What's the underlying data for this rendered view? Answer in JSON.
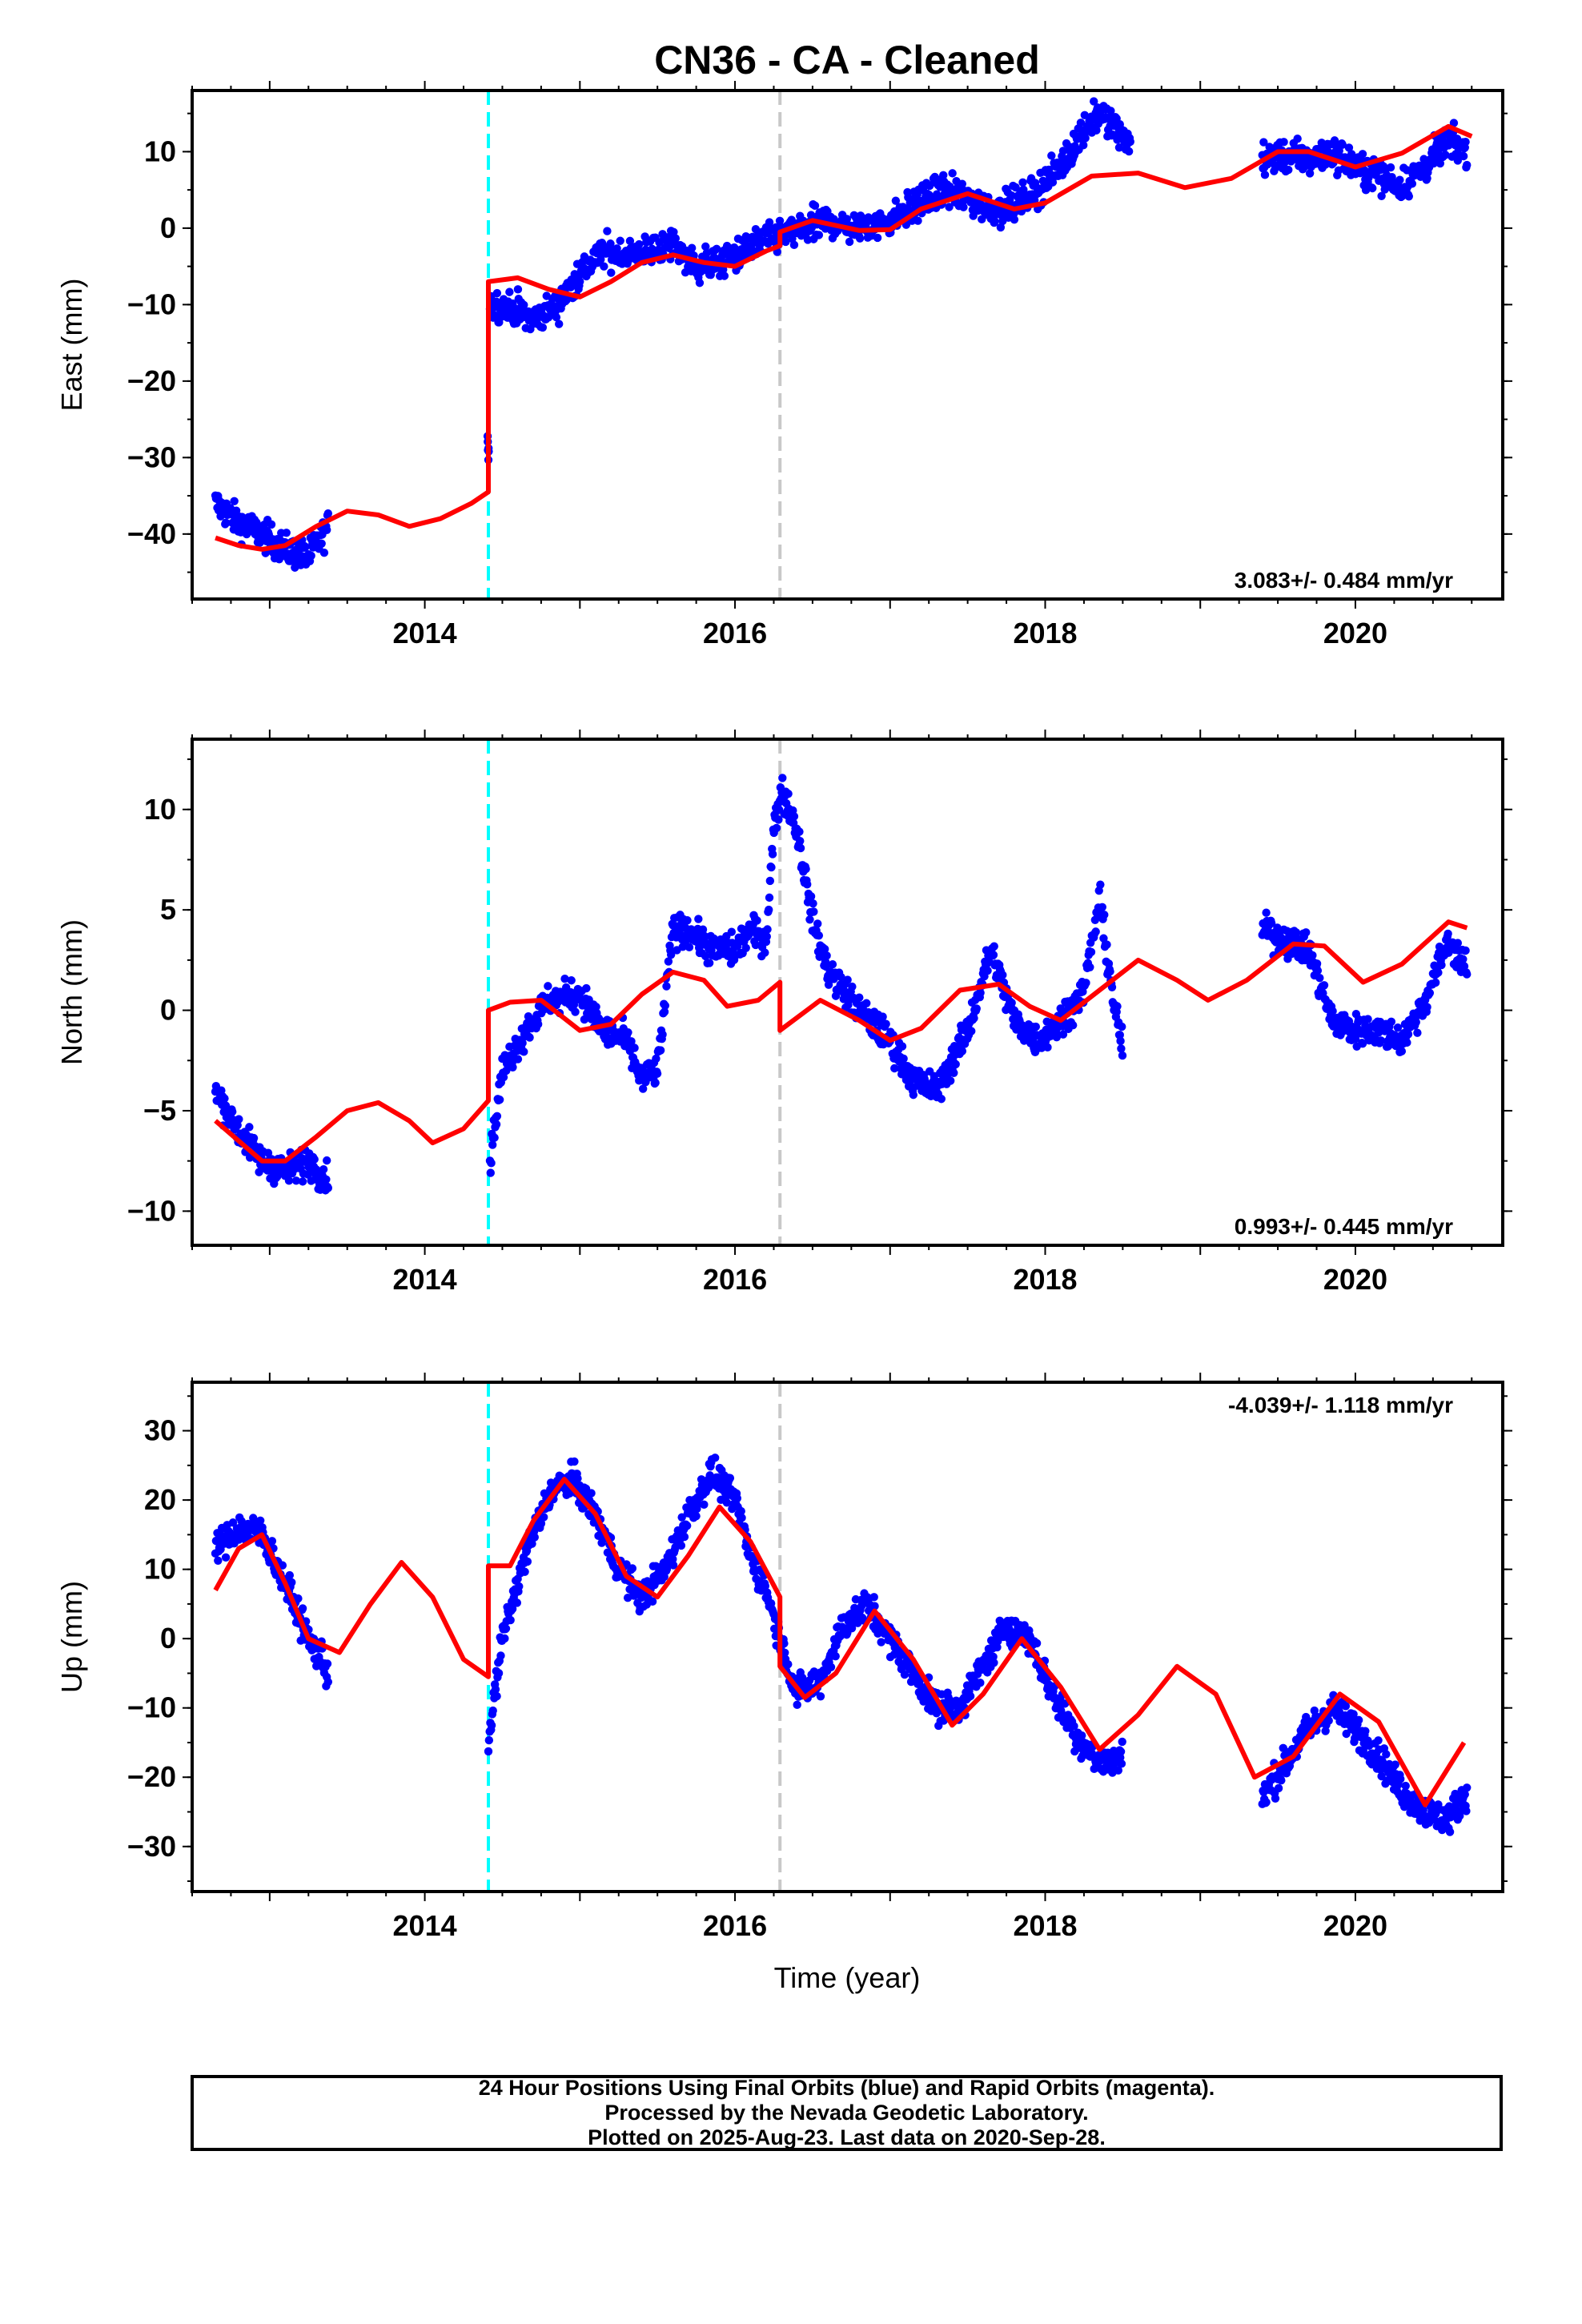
{
  "title": "CN36  - CA - Cleaned",
  "xlabel": "Time (year)",
  "colors": {
    "final_orbits": "#0000ff",
    "model": "#ff0000",
    "offset_equipment": "#00ffff",
    "offset_other": "#c8c8c8",
    "frame": "#000000"
  },
  "footer": {
    "line1": "24 Hour Positions Using Final Orbits (blue) and Rapid Orbits (magenta).",
    "line2": "Processed by the Nevada Geodetic Laboratory.",
    "line3": "Plotted on 2025-Aug-23. Last data on 2020-Sep-28."
  },
  "chart_data": [
    {
      "type": "scatter",
      "component": "East",
      "ylabel": "East (mm)",
      "xlim": [
        2012.5,
        2020.95
      ],
      "ylim": [
        -48.5,
        18
      ],
      "xticks": [
        2014,
        2016,
        2018,
        2020
      ],
      "yticks": [
        -40,
        -30,
        -20,
        -10,
        0,
        10
      ],
      "velocity_label": "3.083+/- 0.484 mm/yr",
      "velocity_label_position": "bottom-right",
      "offset_lines": [
        {
          "x": 2014.41,
          "color": "cyan"
        },
        {
          "x": 2016.29,
          "color": "gray"
        }
      ],
      "data_segments": [
        {
          "x": [
            2012.65,
            2012.8,
            2012.95,
            2013.1,
            2013.25,
            2013.38
          ],
          "y": [
            -36,
            -38.5,
            -40,
            -42,
            -43,
            -39
          ]
        },
        {
          "x": [
            2014.41
          ],
          "y": [
            -28
          ]
        },
        {
          "x": [
            2014.42,
            2014.55,
            2014.7,
            2014.85,
            2015.0,
            2015.15,
            2015.3,
            2015.45,
            2015.6,
            2015.75,
            2015.9,
            2016.05,
            2016.2,
            2016.29,
            2016.45,
            2016.6,
            2016.75,
            2016.9,
            2017.05,
            2017.2,
            2017.35,
            2017.5,
            2017.65,
            2017.8,
            2017.95,
            2018.1,
            2018.25,
            2018.35,
            2018.45,
            2018.55
          ],
          "y": [
            -10,
            -10.5,
            -12,
            -10,
            -6,
            -3,
            -3.5,
            -3,
            -2,
            -5,
            -4.5,
            -3,
            -1.5,
            -1,
            0,
            1,
            0,
            0.5,
            1.5,
            3.5,
            5,
            4,
            2.5,
            3,
            5,
            8,
            13,
            15,
            13,
            11
          ]
        },
        {
          "x": [
            2019.4,
            2019.55,
            2019.7,
            2019.85,
            2020.0,
            2020.15,
            2020.3,
            2020.45,
            2020.6,
            2020.72
          ],
          "y": [
            9,
            9.5,
            9,
            10,
            8,
            7,
            5.5,
            8,
            11.5,
            10
          ]
        }
      ],
      "model": {
        "x": [
          2012.65,
          2012.8,
          2012.95,
          2013.1,
          2013.3,
          2013.5,
          2013.7,
          2013.9,
          2014.1,
          2014.3,
          2014.41,
          2014.41,
          2014.6,
          2014.8,
          2015.0,
          2015.2,
          2015.4,
          2015.6,
          2015.8,
          2016.0,
          2016.2,
          2016.29,
          2016.29,
          2016.5,
          2016.8,
          2017.0,
          2017.2,
          2017.5,
          2017.8,
          2018.0,
          2018.3,
          2018.6,
          2018.9,
          2019.2,
          2019.5,
          2019.7,
          2020.0,
          2020.3,
          2020.6,
          2020.75
        ],
        "y": [
          -40.5,
          -41.5,
          -42,
          -41.5,
          -39,
          -37,
          -37.5,
          -39,
          -38,
          -36,
          -34.5,
          -7,
          -6.5,
          -8,
          -9,
          -7,
          -4.5,
          -3.5,
          -4.5,
          -5,
          -3,
          -2.3,
          -0.5,
          1,
          -0.3,
          -0.2,
          2.5,
          4.5,
          2.5,
          3.3,
          6.8,
          7.2,
          5.3,
          6.5,
          10,
          10,
          8,
          9.8,
          13.3,
          12
        ]
      }
    },
    {
      "type": "scatter",
      "component": "North",
      "ylabel": "North (mm)",
      "xlim": [
        2012.5,
        2020.95
      ],
      "ylim": [
        -11.7,
        13.5
      ],
      "xticks": [
        2014,
        2016,
        2018,
        2020
      ],
      "yticks": [
        -10,
        -5,
        0,
        5,
        10
      ],
      "velocity_label": "0.993+/- 0.445 mm/yr",
      "velocity_label_position": "bottom-right",
      "offset_lines": [
        {
          "x": 2014.41,
          "color": "cyan"
        },
        {
          "x": 2016.29,
          "color": "gray"
        }
      ],
      "data_segments": [
        {
          "x": [
            2012.65,
            2012.8,
            2012.95,
            2013.1,
            2013.25,
            2013.38
          ],
          "y": [
            -4,
            -6,
            -7.5,
            -8,
            -7.5,
            -8.5
          ]
        },
        {
          "x": [
            2014.42,
            2014.5,
            2014.65,
            2014.8,
            2015.0,
            2015.15,
            2015.3,
            2015.4,
            2015.5,
            2015.6,
            2015.7,
            2015.85,
            2016.0,
            2016.1,
            2016.2,
            2016.25,
            2016.3,
            2016.4,
            2016.5,
            2016.6,
            2016.8,
            2017.0,
            2017.15,
            2017.3,
            2017.5,
            2017.65,
            2017.8,
            2017.95,
            2018.1,
            2018.25,
            2018.35,
            2018.45,
            2018.5
          ],
          "y": [
            -7.5,
            -3,
            -1,
            0.5,
            0.8,
            -1,
            -1.5,
            -3.5,
            -3,
            4,
            4,
            3,
            3,
            4,
            3.5,
            9,
            11,
            9,
            4.5,
            2,
            0,
            -1.5,
            -3.5,
            -4,
            -1,
            3,
            -0.5,
            -1.5,
            -0.5,
            1,
            5.5,
            0,
            -2
          ]
        },
        {
          "x": [
            2019.4,
            2019.55,
            2019.7,
            2019.85,
            2020.0,
            2020.15,
            2020.3,
            2020.45,
            2020.6,
            2020.72
          ],
          "y": [
            4,
            3.5,
            3,
            -0.5,
            -1,
            -1,
            -1.5,
            0.5,
            3.5,
            2
          ]
        }
      ],
      "model": {
        "x": [
          2012.65,
          2012.8,
          2012.95,
          2013.1,
          2013.3,
          2013.5,
          2013.7,
          2013.9,
          2014.05,
          2014.25,
          2014.41,
          2014.41,
          2014.55,
          2014.75,
          2015.0,
          2015.2,
          2015.4,
          2015.6,
          2015.8,
          2015.95,
          2016.15,
          2016.29,
          2016.29,
          2016.55,
          2016.8,
          2017.0,
          2017.2,
          2017.45,
          2017.7,
          2017.9,
          2018.1,
          2018.35,
          2018.6,
          2018.85,
          2019.05,
          2019.3,
          2019.6,
          2019.8,
          2020.05,
          2020.3,
          2020.6,
          2020.72
        ],
        "y": [
          -5.5,
          -6.5,
          -7.5,
          -7.5,
          -6.3,
          -5,
          -4.6,
          -5.5,
          -6.6,
          -5.9,
          -4.5,
          0,
          0.4,
          0.5,
          -1,
          -0.7,
          0.8,
          1.9,
          1.5,
          0.2,
          0.5,
          1.4,
          -1,
          0.5,
          -0.5,
          -1.5,
          -0.9,
          1,
          1.3,
          0.2,
          -0.5,
          1,
          2.5,
          1.5,
          0.5,
          1.5,
          3.3,
          3.2,
          1.4,
          2.3,
          4.4,
          4.1
        ]
      }
    },
    {
      "type": "scatter",
      "component": "Up",
      "ylabel": "Up (mm)",
      "xlim": [
        2012.5,
        2020.95
      ],
      "ylim": [
        -36.5,
        37
      ],
      "xticks": [
        2014,
        2016,
        2018,
        2020
      ],
      "yticks": [
        -30,
        -20,
        -10,
        0,
        10,
        20,
        30
      ],
      "velocity_label": "-4.039+/- 1.118 mm/yr",
      "velocity_label_position": "top-right",
      "offset_lines": [
        {
          "x": 2014.41,
          "color": "cyan"
        },
        {
          "x": 2016.29,
          "color": "gray"
        }
      ],
      "data_segments": [
        {
          "x": [
            2012.65,
            2012.8,
            2012.95,
            2013.1,
            2013.25,
            2013.38
          ],
          "y": [
            13,
            16,
            15,
            8,
            0,
            -5
          ]
        },
        {
          "x": [
            2014.41,
            2014.5,
            2014.65,
            2014.8,
            2014.95,
            2015.1,
            2015.25,
            2015.4,
            2015.55,
            2015.7,
            2015.85,
            2016.0,
            2016.1,
            2016.2,
            2016.29,
            2016.4,
            2016.55,
            2016.7,
            2016.85,
            2017.0,
            2017.15,
            2017.3,
            2017.45,
            2017.6,
            2017.75,
            2017.9,
            2018.05,
            2018.2,
            2018.35,
            2018.5
          ],
          "y": [
            -15,
            0,
            12,
            21,
            23,
            18,
            10,
            6,
            10,
            18,
            24,
            20,
            12,
            7,
            0,
            -8,
            -6,
            2,
            5,
            0,
            -5,
            -10,
            -10,
            -4,
            2,
            0,
            -8,
            -14,
            -18,
            -17
          ]
        },
        {
          "x": [
            2019.4,
            2019.55,
            2019.7,
            2019.85,
            2020.0,
            2020.15,
            2020.3,
            2020.45,
            2020.6,
            2020.72
          ],
          "y": [
            -23,
            -18,
            -13,
            -10,
            -13,
            -17,
            -22,
            -25,
            -26,
            -22
          ]
        }
      ],
      "model": {
        "x": [
          2012.65,
          2012.8,
          2012.95,
          2013.1,
          2013.25,
          2013.45,
          2013.65,
          2013.85,
          2014.05,
          2014.25,
          2014.41,
          2014.41,
          2014.55,
          2014.7,
          2014.9,
          2015.1,
          2015.3,
          2015.5,
          2015.7,
          2015.9,
          2016.1,
          2016.29,
          2016.29,
          2016.45,
          2016.65,
          2016.9,
          2017.15,
          2017.4,
          2017.6,
          2017.85,
          2018.1,
          2018.35,
          2018.6,
          2018.85,
          2019.1,
          2019.35,
          2019.6,
          2019.9,
          2020.15,
          2020.45,
          2020.7
        ],
        "y": [
          7,
          13,
          15,
          8,
          0,
          -2,
          5,
          11,
          6,
          -3,
          -5.5,
          10.5,
          10.5,
          17,
          23,
          18,
          9,
          6,
          12,
          19,
          14,
          6,
          -4,
          -8.5,
          -5,
          4,
          -3,
          -12.5,
          -8,
          0,
          -7,
          -16,
          -11,
          -4,
          -8,
          -20,
          -17,
          -8,
          -12,
          -24,
          -15
        ]
      }
    }
  ]
}
